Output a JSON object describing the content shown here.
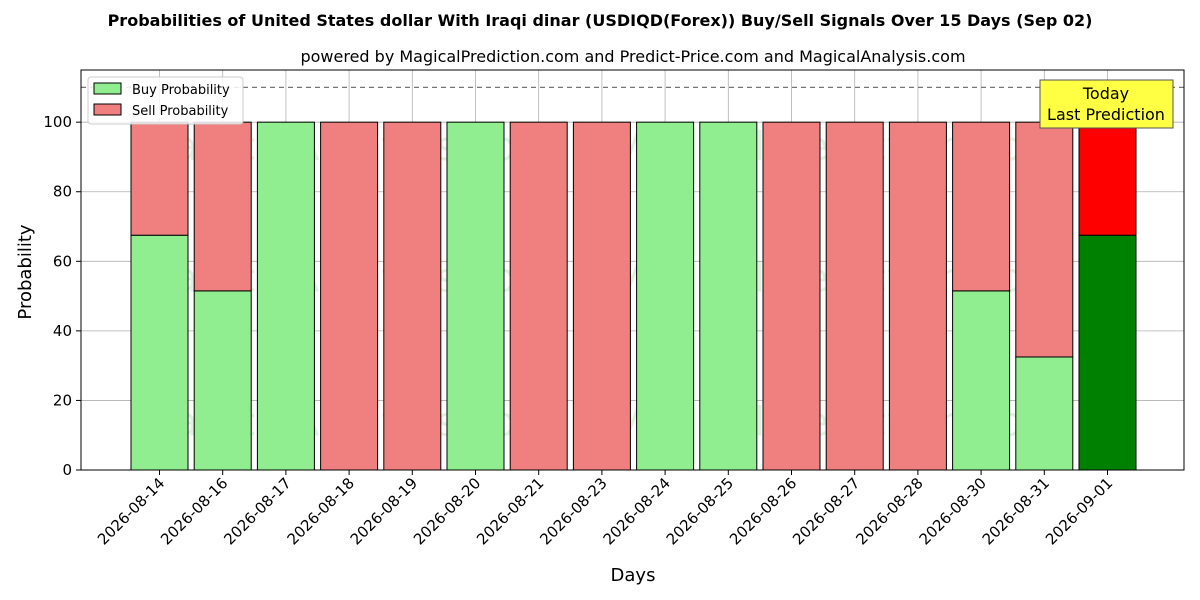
{
  "chart_data": {
    "type": "bar",
    "stacked": true,
    "title": "Probabilities of United States dollar With Iraqi dinar (USDIQD(Forex)) Buy/Sell Signals Over 15 Days (Sep 02)",
    "subtitle": "powered by MagicalPrediction.com and Predict-Price.com and MagicalAnalysis.com",
    "xlabel": "Days",
    "ylabel": "Probability",
    "ylim": [
      0,
      115
    ],
    "yticks": [
      0,
      20,
      40,
      60,
      80,
      100
    ],
    "reference_line": 110,
    "grid": true,
    "legend_position": "top-left",
    "categories": [
      "2026-08-14",
      "2026-08-16",
      "2026-08-17",
      "2026-08-18",
      "2026-08-19",
      "2026-08-20",
      "2026-08-21",
      "2026-08-23",
      "2026-08-24",
      "2026-08-25",
      "2026-08-26",
      "2026-08-27",
      "2026-08-28",
      "2026-08-30",
      "2026-08-31",
      "2026-09-01"
    ],
    "series": [
      {
        "name": "Buy Probability",
        "color": "#90ee90",
        "highlight_color": "#008000",
        "values": [
          67.5,
          51.5,
          100,
          0,
          0,
          100,
          0,
          0,
          100,
          100,
          0,
          0,
          0,
          51.5,
          32.5,
          67.5
        ]
      },
      {
        "name": "Sell Probability",
        "color": "#f08080",
        "highlight_color": "#ff0000",
        "values": [
          32.5,
          48.5,
          0,
          100,
          100,
          0,
          100,
          100,
          0,
          0,
          100,
          100,
          100,
          48.5,
          67.5,
          32.5
        ]
      }
    ],
    "highlight_index": 15,
    "annotation": {
      "line1": "Today",
      "line2": "Last Prediction",
      "background": "#ffff44"
    },
    "watermarks": [
      "MagicalAnalysis.com",
      "MagicalPrediction.com"
    ]
  }
}
